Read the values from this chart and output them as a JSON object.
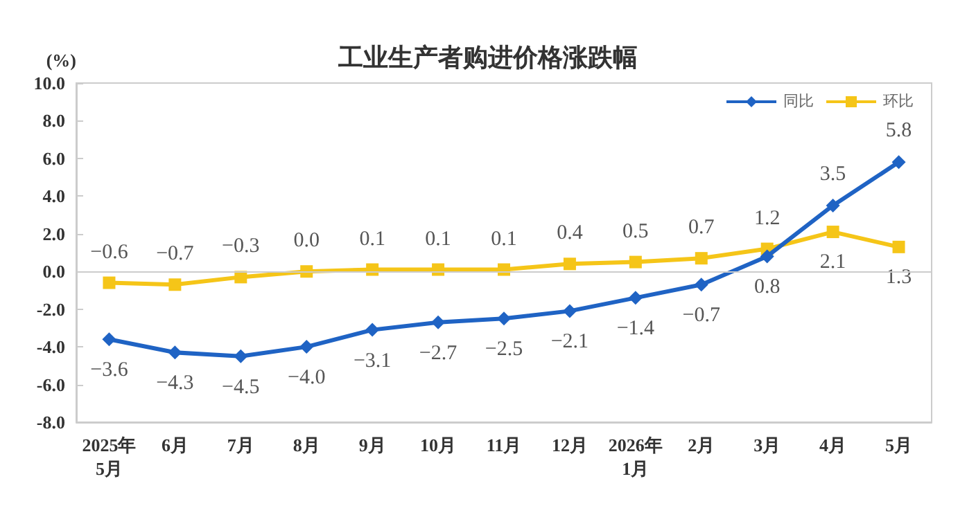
{
  "chart_data": {
    "type": "line",
    "title": "工业生产者购进价格涨跌幅",
    "ylabel": "(%)",
    "categories": [
      "2025年\n5月",
      "6月",
      "7月",
      "8月",
      "9月",
      "10月",
      "11月",
      "12月",
      "2026年\n1月",
      "2月",
      "3月",
      "4月",
      "5月"
    ],
    "series": [
      {
        "name": "同比",
        "color": "#1f63c4",
        "marker": "diamond",
        "values": [
          -3.6,
          -4.3,
          -4.5,
          -4.0,
          -3.1,
          -2.7,
          -2.5,
          -2.1,
          -1.4,
          -0.7,
          0.8,
          3.5,
          5.8
        ],
        "value_labels": [
          "−3.6",
          "−4.3",
          "−4.5",
          "−4.0",
          "−3.1",
          "−2.7",
          "−2.5",
          "−2.1",
          "−1.4",
          "−0.7",
          "0.8",
          "3.5",
          "5.8"
        ]
      },
      {
        "name": "环比",
        "color": "#f5c518",
        "marker": "square",
        "values": [
          -0.6,
          -0.7,
          -0.3,
          0.0,
          0.1,
          0.1,
          0.1,
          0.4,
          0.5,
          0.7,
          1.2,
          2.1,
          1.3
        ],
        "value_labels": [
          "−0.6",
          "−0.7",
          "−0.3",
          "0.0",
          "0.1",
          "0.1",
          "0.1",
          "0.4",
          "0.5",
          "0.7",
          "1.2",
          "2.1",
          "1.3"
        ]
      }
    ],
    "ylim": [
      -8,
      10
    ],
    "yticks": [
      {
        "value": -8,
        "label": "-8.0"
      },
      {
        "value": -6,
        "label": "-6.0"
      },
      {
        "value": -4,
        "label": "-4.0"
      },
      {
        "value": -2,
        "label": "-2.0"
      },
      {
        "value": 0,
        "label": "0.0"
      },
      {
        "value": 2,
        "label": "2.0"
      },
      {
        "value": 4,
        "label": "4.0"
      },
      {
        "value": 6,
        "label": "6.0"
      },
      {
        "value": 8,
        "label": "8.0"
      },
      {
        "value": 10,
        "label": "10.0"
      }
    ],
    "ref_lines": [
      {
        "axis": "y",
        "value": 0,
        "color": "#cccccc"
      }
    ],
    "legend": "top right",
    "line_style": "solid"
  }
}
